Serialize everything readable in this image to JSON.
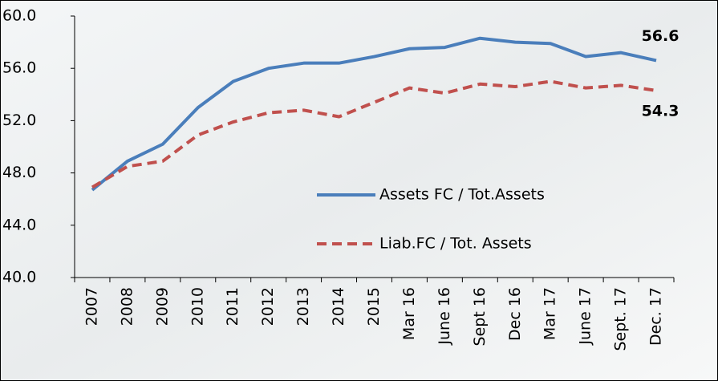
{
  "chart_data": {
    "type": "line",
    "categories": [
      "2007",
      "2008",
      "2009",
      "2010",
      "2011",
      "2012",
      "2013",
      "2014",
      "2015",
      "Mar 16",
      "June 16",
      "Sept 16",
      "Dec 16",
      "Mar 17",
      "June 17",
      "Sept. 17",
      "Dec. 17"
    ],
    "series": [
      {
        "name": "Assets FC / Tot.Assets",
        "color": "#4a7ebb",
        "dash": false,
        "values": [
          46.7,
          48.9,
          50.2,
          53.0,
          55.0,
          56.0,
          56.4,
          56.4,
          56.9,
          57.5,
          57.6,
          58.3,
          58.0,
          57.9,
          56.9,
          57.2,
          56.6
        ]
      },
      {
        "name": "Liab.FC / Tot. Assets",
        "color": "#c0504d",
        "dash": true,
        "values": [
          46.9,
          48.5,
          48.9,
          50.9,
          51.9,
          52.6,
          52.8,
          52.3,
          53.4,
          54.5,
          54.1,
          54.8,
          54.6,
          55.0,
          54.5,
          54.7,
          54.3
        ]
      }
    ],
    "label_last": true,
    "ylim": [
      40,
      60
    ],
    "yticks": [
      {
        "value": 40,
        "label": "40.0"
      },
      {
        "value": 44,
        "label": "44.0"
      },
      {
        "value": 48,
        "label": "48.0"
      },
      {
        "value": 52,
        "label": "52.0"
      },
      {
        "value": 56,
        "label": "56.0"
      },
      {
        "value": 60,
        "label": "60.0"
      }
    ],
    "grid": false
  }
}
